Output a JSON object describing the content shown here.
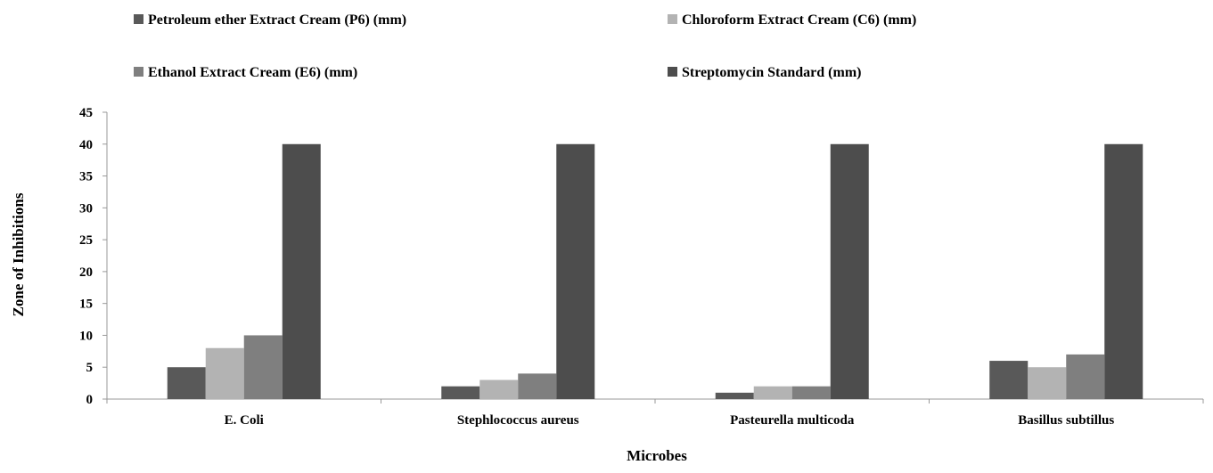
{
  "chart_data": {
    "type": "bar",
    "xlabel": "Microbes",
    "ylabel": "Zone of Inhibitions",
    "ylim": [
      0,
      45
    ],
    "yticks": [
      0,
      5,
      10,
      15,
      20,
      25,
      30,
      35,
      40,
      45
    ],
    "grid": false,
    "legend_position": "top",
    "categories": [
      "E. Coli",
      "Stephlococcus aureus",
      "Pasteurella multicoda",
      "Basillus subtillus"
    ],
    "series": [
      {
        "name": "Petroleum ether Extract Cream (P6) (mm)",
        "color": "#595959",
        "values": [
          5,
          2,
          1,
          6
        ]
      },
      {
        "name": "Chloroform Extract Cream (C6) (mm)",
        "color": "#b3b3b3",
        "values": [
          8,
          3,
          2,
          5
        ]
      },
      {
        "name": "Ethanol Extract  Cream (E6) (mm)",
        "color": "#7f7f7f",
        "values": [
          10,
          4,
          2,
          7
        ]
      },
      {
        "name": "Streptomycin Standard (mm)",
        "color": "#4d4d4d",
        "values": [
          40,
          40,
          40,
          40
        ]
      }
    ]
  }
}
